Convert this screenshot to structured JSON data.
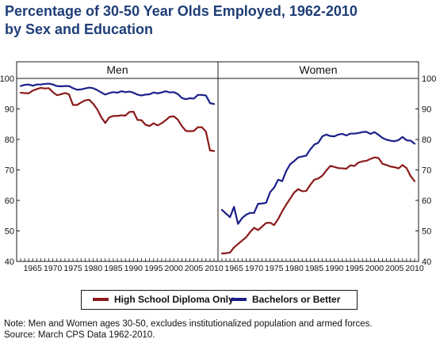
{
  "title": {
    "line1": "Percentage of 30-50 Year Olds Employed, 1962-2010",
    "line2": "by Sex and Education"
  },
  "colors": {
    "title": "#1f3e77",
    "high_school": "#8b1a1a",
    "bachelors": "#1b1f8a",
    "frame": "#1a1a1a"
  },
  "legend": {
    "items": [
      {
        "label": "High School Diploma Only",
        "color": "#8b1a1a"
      },
      {
        "label": "Bachelors or Better",
        "color": "#1b1f8a"
      }
    ]
  },
  "notes": {
    "line1": "Note: Men and Women ages 30-50, excludes institutionalized population and armed forces.",
    "line2": "Source: March CPS Data 1962-2010."
  },
  "chart_data": [
    {
      "type": "line",
      "panel_title": "Men",
      "y_ticks_side": "left",
      "ylim": [
        40,
        100
      ],
      "y_ticks": [
        40,
        50,
        60,
        70,
        80,
        90,
        100
      ],
      "xlim": [
        1962,
        2010
      ],
      "x_tick_labels": [
        1965,
        1970,
        1975,
        1980,
        1985,
        1990,
        1995,
        2000,
        2005,
        2010
      ],
      "x": [
        1962,
        1963,
        1964,
        1965,
        1966,
        1967,
        1968,
        1969,
        1970,
        1971,
        1972,
        1973,
        1974,
        1975,
        1976,
        1977,
        1978,
        1979,
        1980,
        1981,
        1982,
        1983,
        1984,
        1985,
        1986,
        1987,
        1988,
        1989,
        1990,
        1991,
        1992,
        1993,
        1994,
        1995,
        1996,
        1997,
        1998,
        1999,
        2000,
        2001,
        2002,
        2003,
        2004,
        2005,
        2006,
        2007,
        2008,
        2009,
        2010
      ],
      "series": [
        {
          "name": "High School Diploma Only",
          "color": "#8b1a1a",
          "values": [
            95.3,
            95.2,
            95.1,
            96,
            96.5,
            96.9,
            96.7,
            96.8,
            95.5,
            94.5,
            94.8,
            95.2,
            94.8,
            91.3,
            91.3,
            92.1,
            92.8,
            93,
            91.7,
            89.9,
            87.3,
            85.4,
            87.2,
            87.7,
            87.7,
            87.9,
            87.8,
            89,
            89.1,
            86.4,
            86.3,
            84.8,
            84.4,
            85.3,
            84.6,
            85.3,
            86.3,
            87.4,
            87.6,
            86.5,
            84.4,
            82.8,
            82.7,
            82.8,
            84,
            84,
            82.5,
            76.4,
            76.2
          ]
        },
        {
          "name": "Bachelors or Better",
          "color": "#1b1f8a",
          "values": [
            97.5,
            97.9,
            98,
            97.6,
            98,
            98,
            98.2,
            98.3,
            98,
            97.5,
            97.4,
            97.5,
            97.5,
            96.8,
            96.3,
            96.4,
            96.7,
            97,
            96.8,
            96.2,
            95.4,
            94.7,
            95.2,
            95.5,
            95.3,
            95.8,
            95.5,
            95.7,
            95.3,
            94.7,
            94.4,
            94.7,
            94.8,
            95.4,
            95.1,
            95.4,
            95.8,
            95.4,
            95.5,
            94.9,
            93.6,
            93.2,
            93.5,
            93.4,
            94.6,
            94.6,
            94.4,
            91.9,
            91.6
          ]
        }
      ]
    },
    {
      "type": "line",
      "panel_title": "Women",
      "y_ticks_side": "right",
      "ylim": [
        40,
        100
      ],
      "y_ticks": [
        40,
        50,
        60,
        70,
        80,
        90,
        100
      ],
      "xlim": [
        1962,
        2010
      ],
      "x_tick_labels": [
        1965,
        1970,
        1975,
        1980,
        1985,
        1990,
        1995,
        2000,
        2005,
        2010
      ],
      "x": [
        1962,
        1963,
        1964,
        1965,
        1966,
        1967,
        1968,
        1969,
        1970,
        1971,
        1972,
        1973,
        1974,
        1975,
        1976,
        1977,
        1978,
        1979,
        1980,
        1981,
        1982,
        1983,
        1984,
        1985,
        1986,
        1987,
        1988,
        1989,
        1990,
        1991,
        1992,
        1993,
        1994,
        1995,
        1996,
        1997,
        1998,
        1999,
        2000,
        2001,
        2002,
        2003,
        2004,
        2005,
        2006,
        2007,
        2008,
        2009,
        2010
      ],
      "series": [
        {
          "name": "High School Diploma Only",
          "color": "#8b1a1a",
          "values": [
            42.6,
            42.7,
            42.9,
            44.6,
            45.7,
            46.8,
            47.9,
            49.6,
            51,
            50.3,
            51.4,
            52.6,
            52.7,
            51.9,
            53.9,
            56.4,
            58.6,
            60.6,
            62.6,
            63.7,
            63,
            63.1,
            65.1,
            66.8,
            67.2,
            68.1,
            69.8,
            71.3,
            71,
            70.6,
            70.5,
            70.4,
            71.5,
            71.3,
            72.4,
            72.8,
            73,
            73.6,
            74.1,
            73.9,
            72,
            71.6,
            71.1,
            70.9,
            70.5,
            71.6,
            70.6,
            68,
            66.3
          ]
        },
        {
          "name": "Bachelors or Better",
          "color": "#1b1f8a",
          "values": [
            56.9,
            55.7,
            54.5,
            57.9,
            52.3,
            54.2,
            55.3,
            55.9,
            55.9,
            58.9,
            59,
            59.2,
            62.7,
            64.2,
            66.8,
            66.3,
            69.6,
            71.9,
            72.9,
            74.1,
            74.4,
            74.7,
            76.7,
            78.3,
            78.9,
            81,
            81.6,
            81.1,
            81,
            81.6,
            81.8,
            81.3,
            81.9,
            81.9,
            82.1,
            82.4,
            82.5,
            81.8,
            82.4,
            81.5,
            80.5,
            79.9,
            79.6,
            79.4,
            79.8,
            80.8,
            79.7,
            79.6,
            78.6
          ]
        }
      ]
    }
  ]
}
